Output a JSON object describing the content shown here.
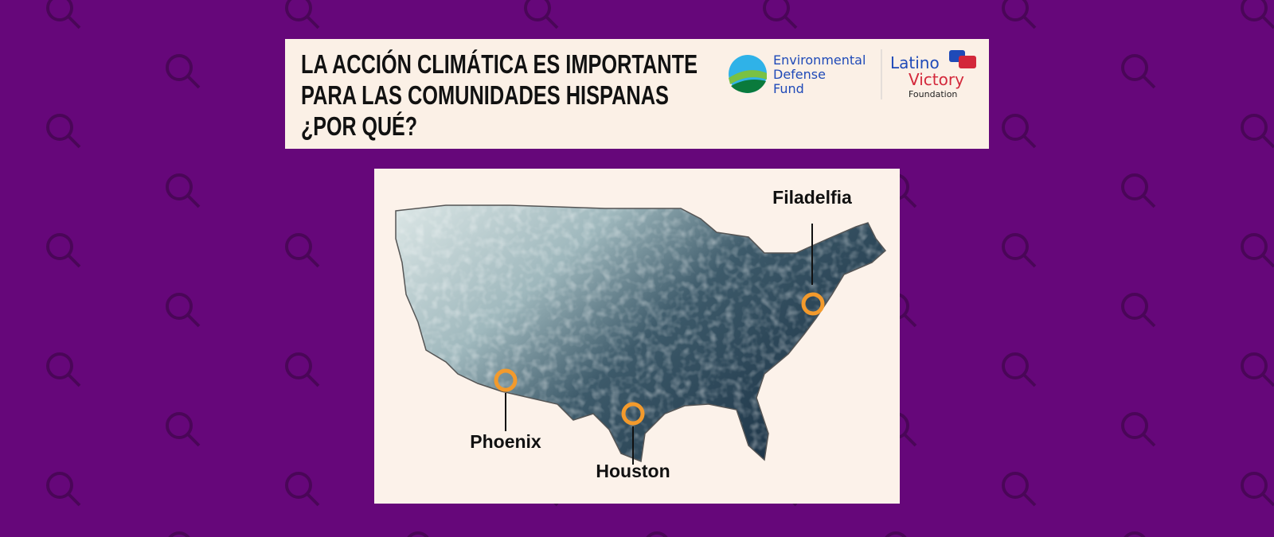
{
  "header": {
    "title": [
      "LA ACCIÓN CLIMÁTICA ES IMPORTANTE",
      "PARA LAS COMUNIDADES HISPANAS",
      "¿POR QUÉ?"
    ],
    "logos": [
      {
        "lines": [
          "Environmental",
          "Defense",
          "Fund"
        ]
      },
      {
        "lines": [
          "Latino",
          "Victory",
          "Foundation"
        ]
      }
    ]
  },
  "map": {
    "labels": [
      "Filadelfia",
      "Phoenix",
      "Houston"
    ]
  }
}
